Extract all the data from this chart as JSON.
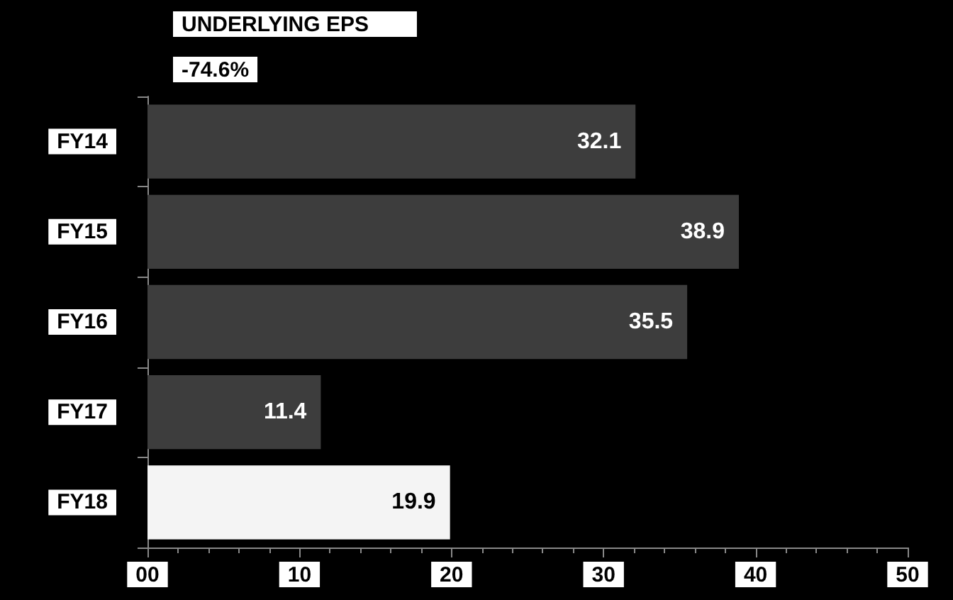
{
  "chart_data": {
    "type": "bar",
    "orientation": "horizontal",
    "title": "UNDERLYING EPS",
    "subtitle": "-74.6%",
    "categories": [
      "FY14",
      "FY15",
      "FY16",
      "FY17",
      "FY18"
    ],
    "values": [
      32.1,
      38.9,
      35.5,
      11.4,
      19.9
    ],
    "colors": [
      "#3d3d3d",
      "#3d3d3d",
      "#3d3d3d",
      "#3d3d3d",
      "#f4f4f4"
    ],
    "xlim": [
      0,
      50
    ],
    "xticks": [
      {
        "value": 0,
        "label": "00"
      },
      10,
      20,
      30,
      40,
      50
    ],
    "data_labels": true,
    "grid": false
  }
}
